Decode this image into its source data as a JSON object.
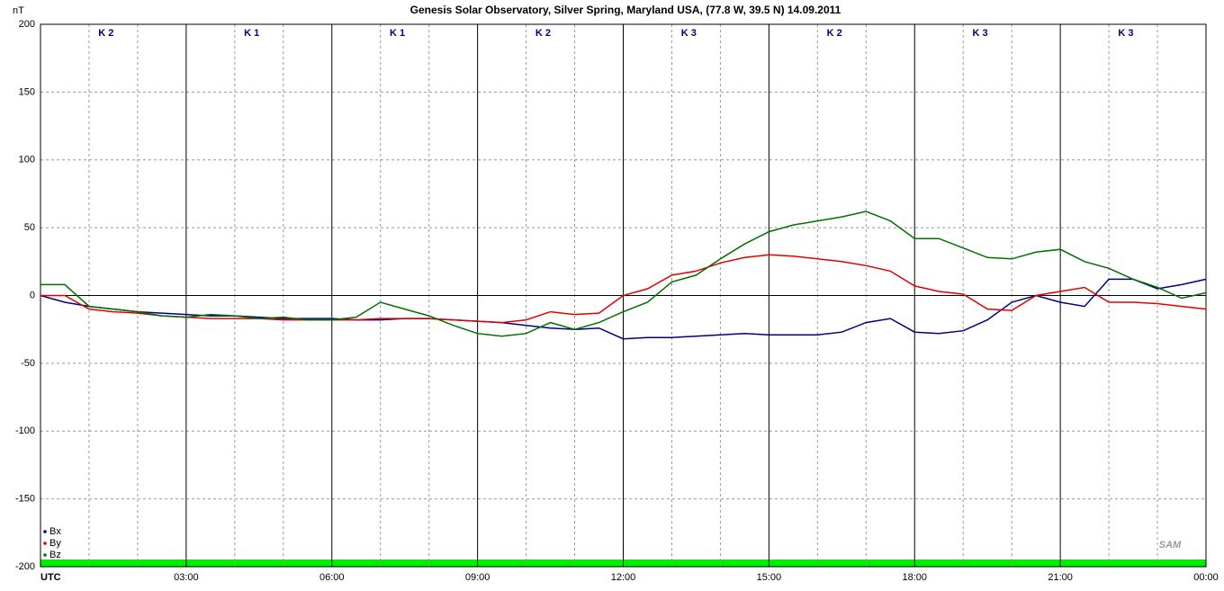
{
  "chart_data": {
    "type": "line",
    "title": "Genesis Solar Observatory, Silver Spring, Maryland USA, (77.8 W, 39.5 N)  14.09.2011",
    "y_label": "nT",
    "k_labels": [
      "K 2",
      "K 1",
      "K 1",
      "K 2",
      "K 3",
      "K 2",
      "K 3",
      "K 3"
    ],
    "logo": "SAM",
    "x": [
      0,
      0.5,
      1,
      1.5,
      2,
      2.5,
      3,
      3.5,
      4,
      4.5,
      5,
      5.5,
      6,
      6.5,
      7,
      7.5,
      8,
      8.5,
      9,
      9.5,
      10,
      10.5,
      11,
      11.5,
      12,
      12.5,
      13,
      13.5,
      14,
      14.5,
      15,
      15.5,
      16,
      16.5,
      17,
      17.5,
      18,
      18.5,
      19,
      19.5,
      20,
      20.5,
      21,
      21.5,
      22,
      22.5,
      23,
      23.5,
      24
    ],
    "series": [
      {
        "name": "Bx",
        "color": "#000080",
        "values": [
          0,
          -5,
          -8,
          -10,
          -12,
          -13,
          -14,
          -15,
          -15,
          -16,
          -17,
          -17,
          -17,
          -18,
          -18,
          -17,
          -17,
          -18,
          -19,
          -20,
          -22,
          -24,
          -25,
          -24,
          -32,
          -31,
          -31,
          -30,
          -29,
          -28,
          -29,
          -29,
          -29,
          -27,
          -20,
          -17,
          -27,
          -28,
          -26,
          -18,
          -5,
          0,
          -5,
          -8,
          12,
          12,
          5,
          8,
          12
        ]
      },
      {
        "name": "By",
        "color": "#e00000",
        "values": [
          0,
          0,
          -10,
          -12,
          -13,
          -15,
          -16,
          -17,
          -17,
          -17,
          -18,
          -18,
          -18,
          -18,
          -17,
          -17,
          -17,
          -18,
          -19,
          -20,
          -18,
          -12,
          -14,
          -13,
          0,
          5,
          15,
          18,
          24,
          28,
          30,
          29,
          27,
          25,
          22,
          18,
          7,
          3,
          1,
          -10,
          -11,
          0,
          3,
          6,
          -5,
          -5,
          -6,
          -8,
          -10
        ]
      },
      {
        "name": "Bz",
        "color": "#007000",
        "values": [
          8,
          8,
          -8,
          -10,
          -12,
          -15,
          -16,
          -14,
          -15,
          -17,
          -16,
          -18,
          -18,
          -16,
          -5,
          -10,
          -15,
          -22,
          -28,
          -30,
          -28,
          -20,
          -25,
          -20,
          -12,
          -5,
          10,
          15,
          27,
          38,
          47,
          52,
          55,
          58,
          62,
          55,
          42,
          42,
          35,
          28,
          27,
          32,
          34,
          25,
          20,
          12,
          6,
          -2,
          2
        ]
      }
    ],
    "xlim": [
      0,
      24
    ],
    "xticks": [
      {
        "value": 0,
        "label": "UTC"
      },
      {
        "value": 3,
        "label": "03:00"
      },
      {
        "value": 6,
        "label": "06:00"
      },
      {
        "value": 9,
        "label": "09:00"
      },
      {
        "value": 12,
        "label": "12:00"
      },
      {
        "value": 15,
        "label": "15:00"
      },
      {
        "value": 18,
        "label": "18:00"
      },
      {
        "value": 21,
        "label": "21:00"
      },
      {
        "value": 24,
        "label": "00:00"
      }
    ],
    "ylim": [
      -200,
      200
    ],
    "yticks": [
      -200,
      -150,
      -100,
      -50,
      0,
      50,
      100,
      150,
      200
    ],
    "grid": true
  }
}
